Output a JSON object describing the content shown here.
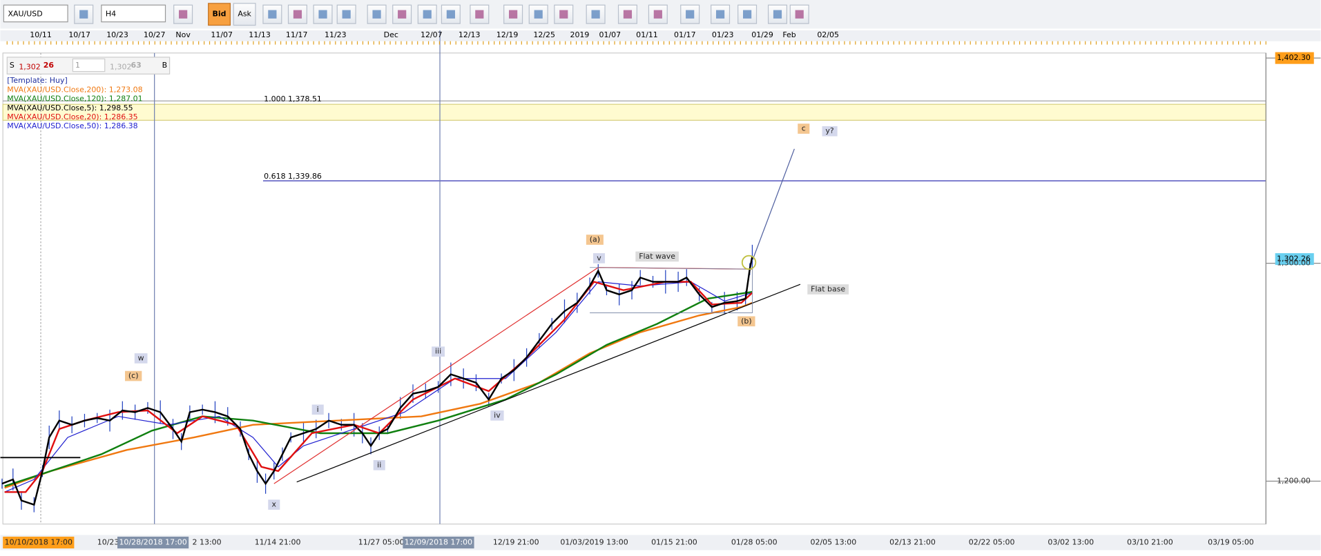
{
  "toolbar": {
    "symbol": "XAU/USD",
    "timeframe": "H4",
    "bid": "Bid",
    "ask": "Ask"
  },
  "top_axis": {
    "labels": [
      "10/11",
      "10/17",
      "10/23",
      "10/27",
      "Nov",
      "11/07",
      "11/13",
      "11/17",
      "11/23",
      "Dec",
      "12/07",
      "12/13",
      "12/19",
      "12/25",
      "2019",
      "01/07",
      "01/11",
      "01/17",
      "01/23",
      "01/29",
      "Feb",
      "02/05"
    ]
  },
  "info": {
    "sell": "S",
    "sell_big": "1,302",
    "sell_pips": "26",
    "amount": "1",
    "buy_big": "1,302",
    "buy_pips": "63",
    "buy": "B",
    "template": "[Template: Huy]",
    "indicators": [
      {
        "text": "MVA(XAU/USD.Close,200): 1,273.08",
        "color": "#f07810"
      },
      {
        "text": "MVA(XAU/USD.Close,120): 1,287.01",
        "color": "#108010"
      },
      {
        "text": "MVA(XAU/USD.Close,5): 1,298.55",
        "color": "#000000"
      },
      {
        "text": "MVA(XAU/USD.Close,20): 1,286.35",
        "color": "#e01010"
      },
      {
        "text": "MVA(XAU/USD.Close,50): 1,286.38",
        "color": "#2020d0"
      }
    ]
  },
  "annotations": [
    "1.000 1,378.51",
    "0.618 1,339.86",
    "c",
    "y?",
    "(a)",
    "v",
    "Flat wave",
    "Flat base",
    "(b)",
    "iii",
    "iv",
    "ii",
    "i",
    "w",
    "(c)",
    "x"
  ],
  "price_axis": {
    "labels": [
      "1,402.30",
      "1,302.26",
      "1,300.00",
      "1,200.00"
    ]
  },
  "bottom_axis": {
    "labels": [
      "10/10/2018 17:00",
      "10/23",
      "10/28/2018 17:00",
      "2 13:00",
      "11/14 21:00",
      "11/27 05:00",
      "12/09/2018 17:00",
      "12/19 21:00",
      "01/03/2019 13:00",
      "01/15 21:00",
      "01/28 05:00",
      "02/05 13:00",
      "02/13 21:00",
      "02/22 05:00",
      "03/02 13:00",
      "03/10 21:00",
      "03/19 05:00"
    ]
  }
}
